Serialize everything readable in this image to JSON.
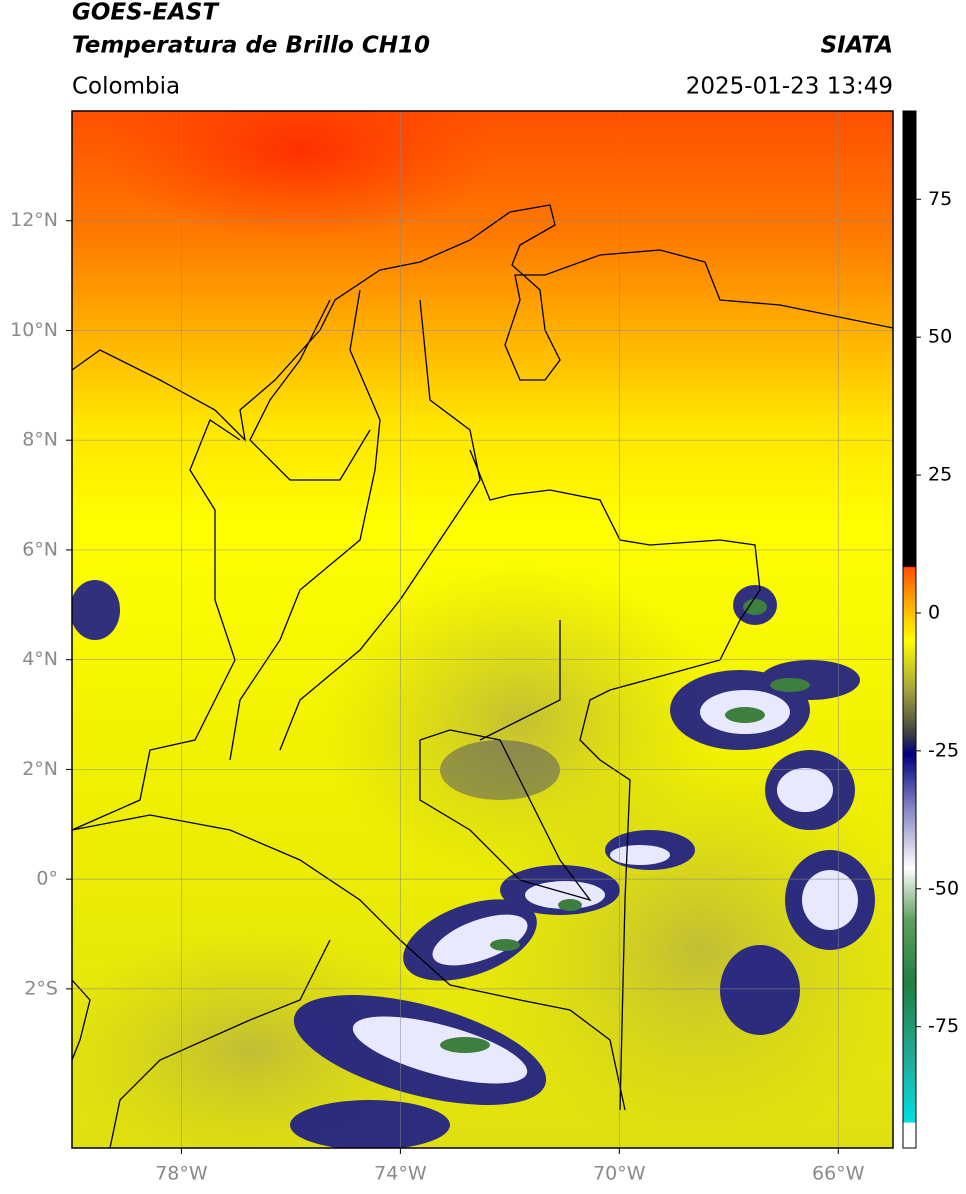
{
  "header": {
    "satellite": "GOES-EAST",
    "product": "Temperatura de Brillo CH10",
    "agency": "SIATA",
    "region": "Colombia",
    "datetime": "2025-01-23 13:49"
  },
  "map": {
    "lonlim": [
      -80,
      -65
    ],
    "latlim": [
      -4.9,
      14
    ],
    "grid": true,
    "xticks": [
      {
        "value": -78,
        "label": "78°W"
      },
      {
        "value": -74,
        "label": "74°W"
      },
      {
        "value": -70,
        "label": "70°W"
      },
      {
        "value": -66,
        "label": "66°W"
      }
    ],
    "yticks": [
      {
        "value": 12,
        "label": "12°N"
      },
      {
        "value": 10,
        "label": "10°N"
      },
      {
        "value": 8,
        "label": "8°N"
      },
      {
        "value": 6,
        "label": "6°N"
      },
      {
        "value": 4,
        "label": "4°N"
      },
      {
        "value": 2,
        "label": "2°N"
      },
      {
        "value": 0,
        "label": "0°"
      },
      {
        "value": -2,
        "label": "2°S"
      }
    ]
  },
  "colorbar": {
    "lim": [
      -97,
      91
    ],
    "ticks": [
      75,
      50,
      25,
      0,
      -25,
      -50,
      -75
    ]
  }
}
